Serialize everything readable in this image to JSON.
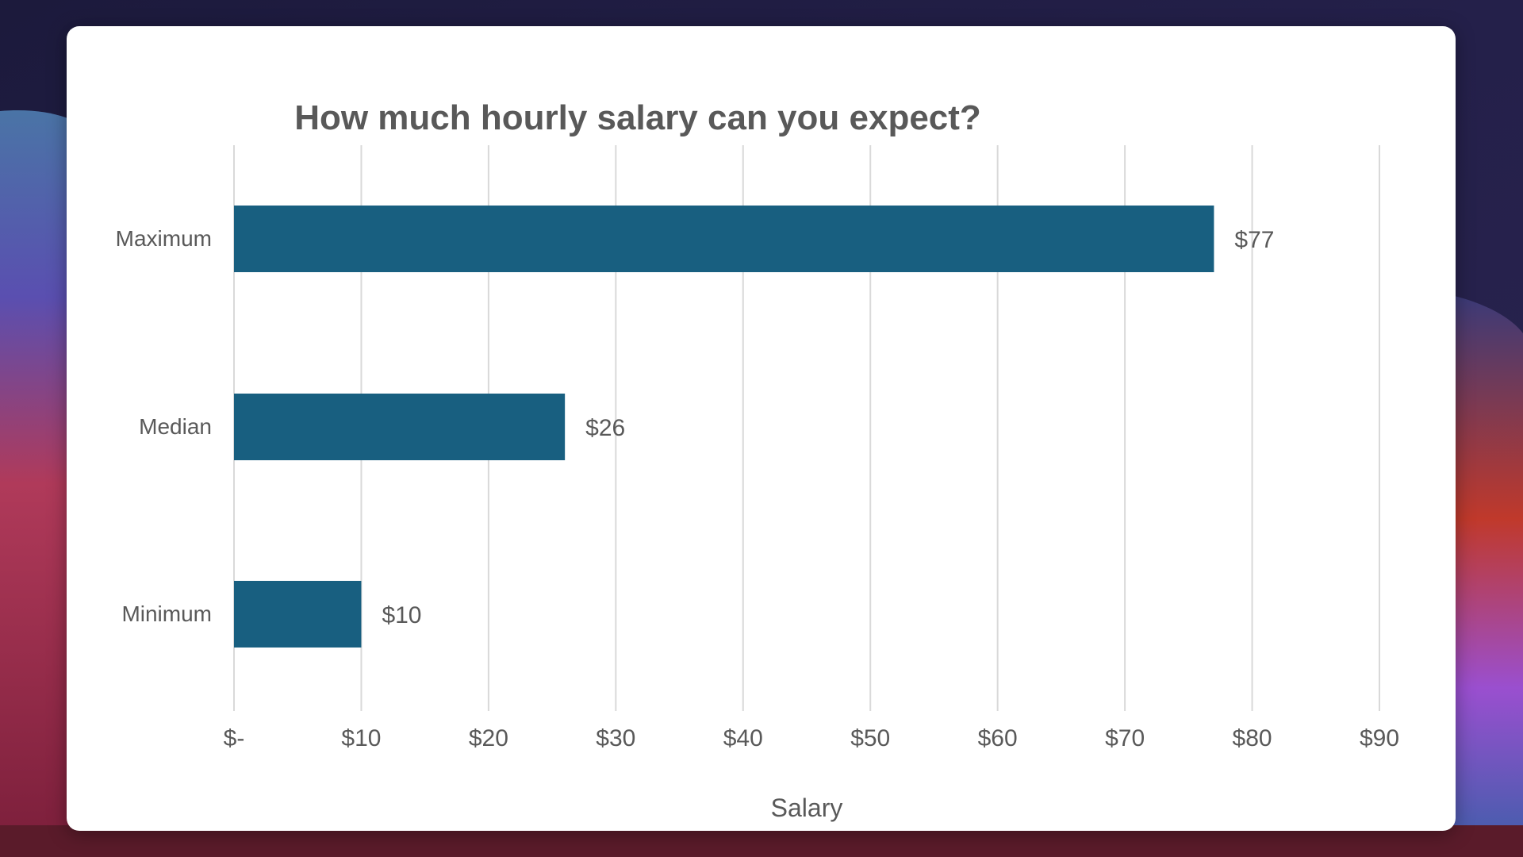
{
  "chart_data": {
    "type": "bar",
    "orientation": "horizontal",
    "title": "How much hourly salary can you expect?",
    "xlabel": "Salary",
    "ylabel": "",
    "categories": [
      "Maximum",
      "Median",
      "Minimum"
    ],
    "values": [
      77,
      26,
      10
    ],
    "value_labels": [
      "$77",
      "$26",
      "$10"
    ],
    "xlim": [
      0,
      90
    ],
    "x_ticks": [
      0,
      10,
      20,
      30,
      40,
      50,
      60,
      70,
      80,
      90
    ],
    "x_tick_labels": [
      "$-",
      "$10",
      "$20",
      "$30",
      "$40",
      "$50",
      "$60",
      "$70",
      "$80",
      "$90"
    ],
    "grid": true,
    "legend": "none",
    "colors": {
      "bar": "#185f80",
      "gridline": "#d9d9d9",
      "title": "#595959",
      "text": "#595959",
      "card": "#ffffff"
    }
  }
}
